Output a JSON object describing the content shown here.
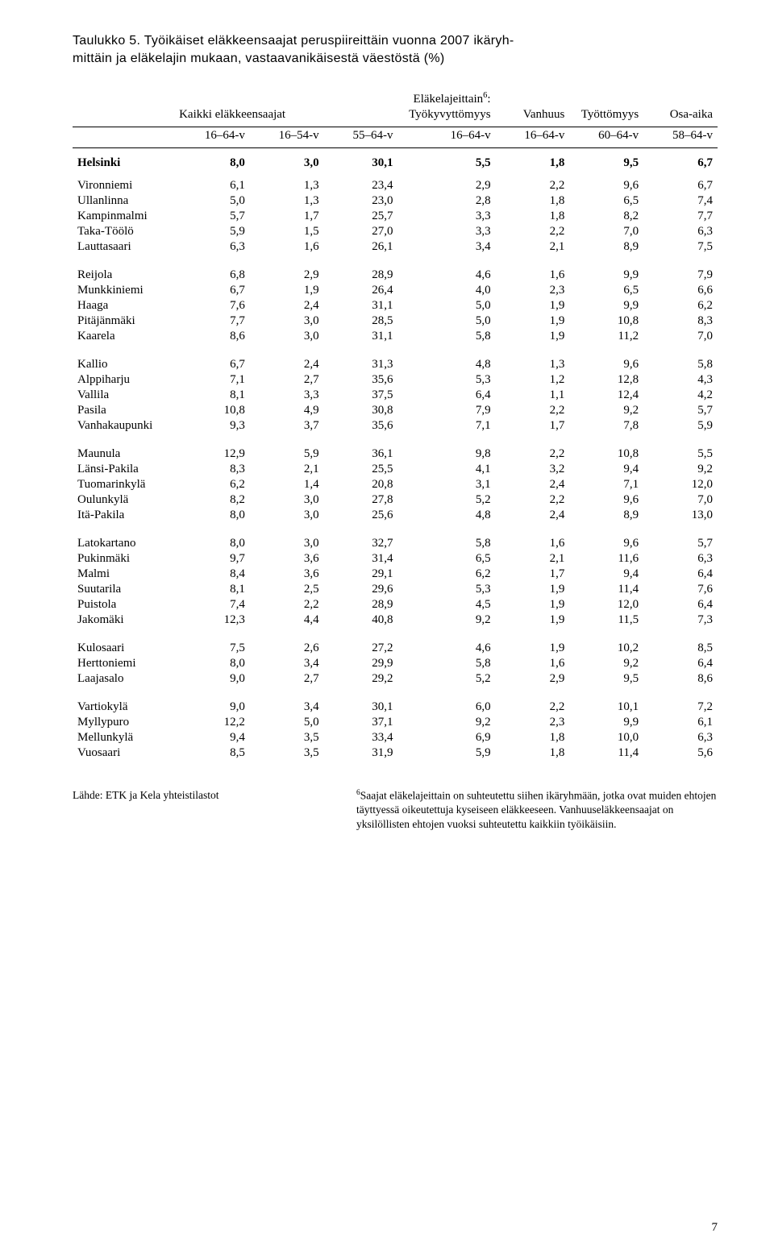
{
  "title_line1": "Taulukko 5. Työikäiset eläkkeensaajat peruspiireittäin vuonna 2007 ikäryh-",
  "title_line2": "mittäin ja eläkelajin mukaan, vastaavanikäisestä väestöstä (%)",
  "header": {
    "group_all": "Kaikki eläkkeensaajat",
    "group_law_sup": "6",
    "group_law": "Eläkelajeittain",
    "col_label": "",
    "col1": "16–64-v",
    "col2": "16–54-v",
    "col3": "55–64-v",
    "law_tk": "Työkyvyttömyys",
    "law_tk_sub": "16–64-v",
    "law_vh": "Vanhuus",
    "law_vh_sub": "16–64-v",
    "law_tt": "Työttömyys",
    "law_tt_sub": "60–64-v",
    "law_oa": "Osa-aika",
    "law_oa_sub": "58–64-v"
  },
  "summary": {
    "name": "Helsinki",
    "v": [
      "8,0",
      "3,0",
      "30,1",
      "5,5",
      "1,8",
      "9,5",
      "6,7"
    ]
  },
  "groups": [
    [
      {
        "name": "Vironniemi",
        "v": [
          "6,1",
          "1,3",
          "23,4",
          "2,9",
          "2,2",
          "9,6",
          "6,7"
        ]
      },
      {
        "name": "Ullanlinna",
        "v": [
          "5,0",
          "1,3",
          "23,0",
          "2,8",
          "1,8",
          "6,5",
          "7,4"
        ]
      },
      {
        "name": "Kampinmalmi",
        "v": [
          "5,7",
          "1,7",
          "25,7",
          "3,3",
          "1,8",
          "8,2",
          "7,7"
        ]
      },
      {
        "name": "Taka-Töölö",
        "v": [
          "5,9",
          "1,5",
          "27,0",
          "3,3",
          "2,2",
          "7,0",
          "6,3"
        ]
      },
      {
        "name": "Lauttasaari",
        "v": [
          "6,3",
          "1,6",
          "26,1",
          "3,4",
          "2,1",
          "8,9",
          "7,5"
        ]
      }
    ],
    [
      {
        "name": "Reijola",
        "v": [
          "6,8",
          "2,9",
          "28,9",
          "4,6",
          "1,6",
          "9,9",
          "7,9"
        ]
      },
      {
        "name": "Munkkiniemi",
        "v": [
          "6,7",
          "1,9",
          "26,4",
          "4,0",
          "2,3",
          "6,5",
          "6,6"
        ]
      },
      {
        "name": "Haaga",
        "v": [
          "7,6",
          "2,4",
          "31,1",
          "5,0",
          "1,9",
          "9,9",
          "6,2"
        ]
      },
      {
        "name": "Pitäjänmäki",
        "v": [
          "7,7",
          "3,0",
          "28,5",
          "5,0",
          "1,9",
          "10,8",
          "8,3"
        ]
      },
      {
        "name": "Kaarela",
        "v": [
          "8,6",
          "3,0",
          "31,1",
          "5,8",
          "1,9",
          "11,2",
          "7,0"
        ]
      }
    ],
    [
      {
        "name": "Kallio",
        "v": [
          "6,7",
          "2,4",
          "31,3",
          "4,8",
          "1,3",
          "9,6",
          "5,8"
        ]
      },
      {
        "name": "Alppiharju",
        "v": [
          "7,1",
          "2,7",
          "35,6",
          "5,3",
          "1,2",
          "12,8",
          "4,3"
        ]
      },
      {
        "name": "Vallila",
        "v": [
          "8,1",
          "3,3",
          "37,5",
          "6,4",
          "1,1",
          "12,4",
          "4,2"
        ]
      },
      {
        "name": "Pasila",
        "v": [
          "10,8",
          "4,9",
          "30,8",
          "7,9",
          "2,2",
          "9,2",
          "5,7"
        ]
      },
      {
        "name": "Vanhakaupunki",
        "v": [
          "9,3",
          "3,7",
          "35,6",
          "7,1",
          "1,7",
          "7,8",
          "5,9"
        ]
      }
    ],
    [
      {
        "name": "Maunula",
        "v": [
          "12,9",
          "5,9",
          "36,1",
          "9,8",
          "2,2",
          "10,8",
          "5,5"
        ]
      },
      {
        "name": "Länsi-Pakila",
        "v": [
          "8,3",
          "2,1",
          "25,5",
          "4,1",
          "3,2",
          "9,4",
          "9,2"
        ]
      },
      {
        "name": "Tuomarinkylä",
        "v": [
          "6,2",
          "1,4",
          "20,8",
          "3,1",
          "2,4",
          "7,1",
          "12,0"
        ]
      },
      {
        "name": "Oulunkylä",
        "v": [
          "8,2",
          "3,0",
          "27,8",
          "5,2",
          "2,2",
          "9,6",
          "7,0"
        ]
      },
      {
        "name": "Itä-Pakila",
        "v": [
          "8,0",
          "3,0",
          "25,6",
          "4,8",
          "2,4",
          "8,9",
          "13,0"
        ]
      }
    ],
    [
      {
        "name": "Latokartano",
        "v": [
          "8,0",
          "3,0",
          "32,7",
          "5,8",
          "1,6",
          "9,6",
          "5,7"
        ]
      },
      {
        "name": "Pukinmäki",
        "v": [
          "9,7",
          "3,6",
          "31,4",
          "6,5",
          "2,1",
          "11,6",
          "6,3"
        ]
      },
      {
        "name": "Malmi",
        "v": [
          "8,4",
          "3,6",
          "29,1",
          "6,2",
          "1,7",
          "9,4",
          "6,4"
        ]
      },
      {
        "name": "Suutarila",
        "v": [
          "8,1",
          "2,5",
          "29,6",
          "5,3",
          "1,9",
          "11,4",
          "7,6"
        ]
      },
      {
        "name": "Puistola",
        "v": [
          "7,4",
          "2,2",
          "28,9",
          "4,5",
          "1,9",
          "12,0",
          "6,4"
        ]
      },
      {
        "name": "Jakomäki",
        "v": [
          "12,3",
          "4,4",
          "40,8",
          "9,2",
          "1,9",
          "11,5",
          "7,3"
        ]
      }
    ],
    [
      {
        "name": "Kulosaari",
        "v": [
          "7,5",
          "2,6",
          "27,2",
          "4,6",
          "1,9",
          "10,2",
          "8,5"
        ]
      },
      {
        "name": "Herttoniemi",
        "v": [
          "8,0",
          "3,4",
          "29,9",
          "5,8",
          "1,6",
          "9,2",
          "6,4"
        ]
      },
      {
        "name": "Laajasalo",
        "v": [
          "9,0",
          "2,7",
          "29,2",
          "5,2",
          "2,9",
          "9,5",
          "8,6"
        ]
      }
    ],
    [
      {
        "name": "Vartiokylä",
        "v": [
          "9,0",
          "3,4",
          "30,1",
          "6,0",
          "2,2",
          "10,1",
          "7,2"
        ]
      },
      {
        "name": "Myllypuro",
        "v": [
          "12,2",
          "5,0",
          "37,1",
          "9,2",
          "2,3",
          "9,9",
          "6,1"
        ]
      },
      {
        "name": "Mellunkylä",
        "v": [
          "9,4",
          "3,5",
          "33,4",
          "6,9",
          "1,8",
          "10,0",
          "6,3"
        ]
      },
      {
        "name": "Vuosaari",
        "v": [
          "8,5",
          "3,5",
          "31,9",
          "5,9",
          "1,8",
          "11,4",
          "5,6"
        ]
      }
    ]
  ],
  "footnote_left": "Lähde: ETK ja Kela yhteistilastot",
  "footnote_right_sup": "6",
  "footnote_right": "Saajat eläkelajeittain on suhteutettu siihen ikäryhmään, jotka ovat muiden ehtojen täyttyessä oikeutettuja kyseiseen eläkkeeseen. Vanhuuseläkkeensaajat on yksilöllisten ehtojen vuoksi suhteutettu kaikkiin työikäisiin.",
  "page_number": "7"
}
